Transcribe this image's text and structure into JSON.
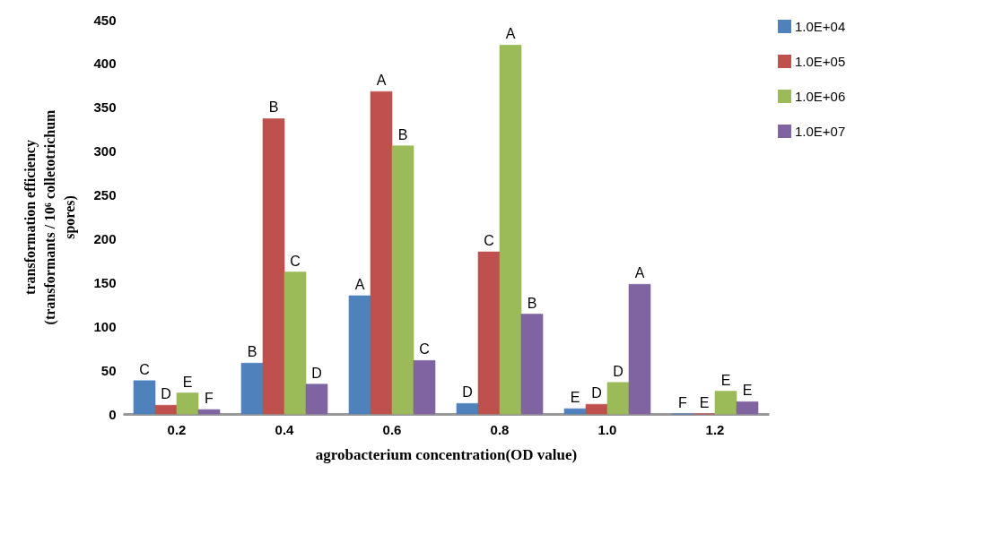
{
  "chart_data": {
    "type": "bar",
    "xlabel": "agrobacterium concentration(OD value)",
    "ylabel": "transformation efficiency\n(transformants / 10⁶ colletotrichum\nspores)",
    "categories": [
      "0.2",
      "0.4",
      "0.6",
      "0.8",
      "1.0",
      "1.2"
    ],
    "series": [
      {
        "name": "1.0E+04",
        "color": "#4f81bd",
        "values": [
          38,
          58,
          135,
          12,
          6,
          0
        ],
        "value_labels": [
          "C",
          "B",
          "A",
          "D",
          "E",
          "F"
        ]
      },
      {
        "name": "1.0E+05",
        "color": "#c0504d",
        "values": [
          10,
          337,
          368,
          185,
          11,
          0
        ],
        "value_labels": [
          "D",
          "B",
          "A",
          "C",
          "D",
          "E"
        ]
      },
      {
        "name": "1.0E+06",
        "color": "#9bbb59",
        "values": [
          24,
          162,
          306,
          421,
          36,
          26
        ],
        "value_labels": [
          "E",
          "C",
          "B",
          "A",
          "D",
          "E"
        ]
      },
      {
        "name": "1.0E+07",
        "color": "#8064a2",
        "values": [
          5,
          34,
          61,
          114,
          148,
          14
        ],
        "value_labels": [
          "F",
          "D",
          "C",
          "B",
          "A",
          "E"
        ]
      }
    ],
    "ylim": [
      0,
      450
    ],
    "yticks": [
      0,
      50,
      100,
      150,
      200,
      250,
      300,
      350,
      400,
      450
    ],
    "grid": false,
    "legend": "right"
  }
}
